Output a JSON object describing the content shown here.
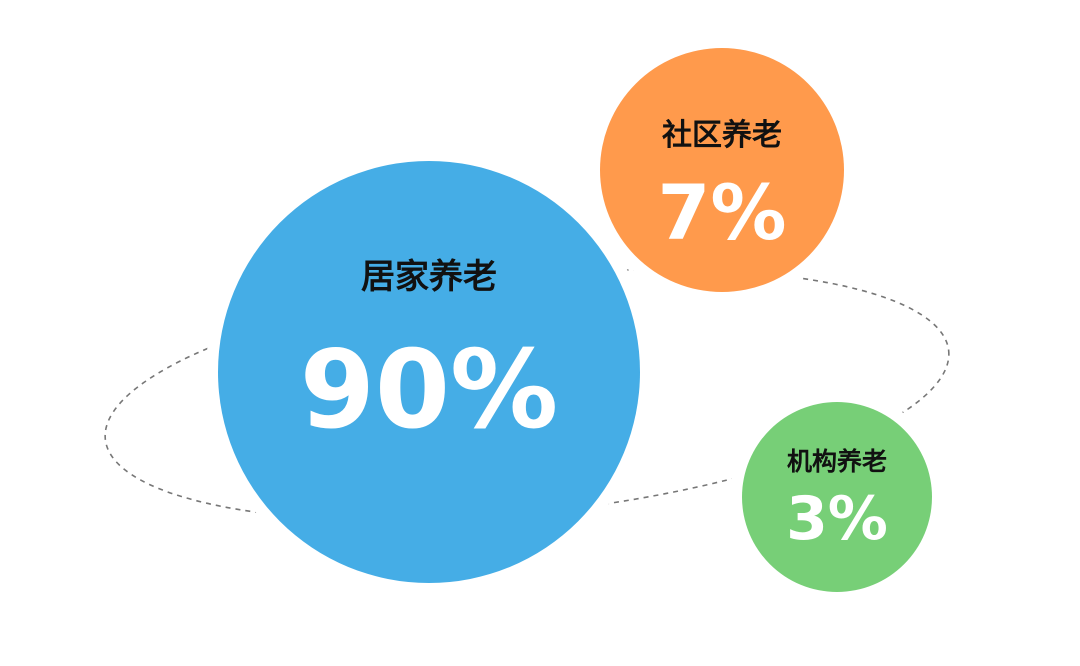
{
  "colors": {
    "home": "#45ADE6",
    "community": "#FF9A4C",
    "institution": "#77CF77",
    "orbit": "#777777"
  },
  "items": [
    {
      "label": "居家养老",
      "percent": "90%",
      "value": 90
    },
    {
      "label": "社区养老",
      "percent": "7%",
      "value": 7
    },
    {
      "label": "机构养老",
      "percent": "3%",
      "value": 3
    }
  ]
}
